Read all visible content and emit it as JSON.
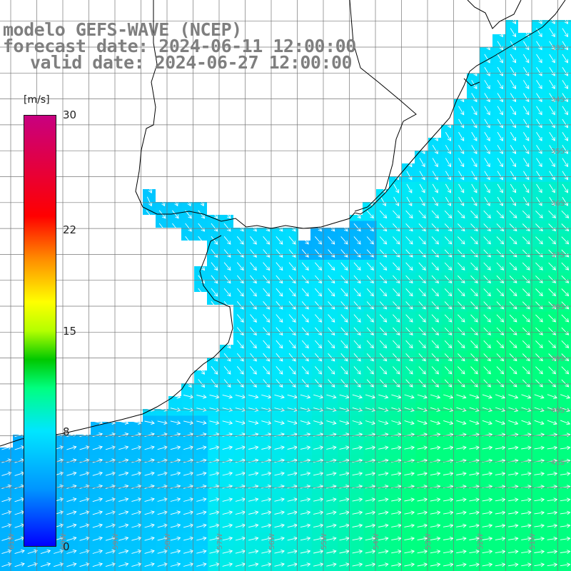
{
  "title": {
    "line1": "modelo GEFS-WAVE (NCEP)",
    "line2": "forecast date: 2024-06-11 12:00:00",
    "line3": "valid date: 2024-06-27 12:00:00"
  },
  "colorbar": {
    "unit": "[m/s]",
    "ticks": [
      "30",
      "22",
      "15",
      "8",
      "0"
    ],
    "tick_values": [
      30,
      22,
      15,
      8,
      0
    ],
    "min": 0,
    "max": 30,
    "stops": [
      {
        "v": 0,
        "color": "#0000ff"
      },
      {
        "v": 4,
        "color": "#0096ff"
      },
      {
        "v": 8,
        "color": "#00e6ff"
      },
      {
        "v": 11,
        "color": "#00ff80"
      },
      {
        "v": 13,
        "color": "#00c800"
      },
      {
        "v": 15,
        "color": "#b4ff00"
      },
      {
        "v": 17,
        "color": "#ffff00"
      },
      {
        "v": 20,
        "color": "#ff8c00"
      },
      {
        "v": 23,
        "color": "#ff0000"
      },
      {
        "v": 30,
        "color": "#c80080"
      }
    ]
  },
  "axes": {
    "lat_labels": [
      "33S",
      "34S",
      "35S",
      "36S",
      "37S",
      "38S",
      "39S",
      "40S",
      "41S"
    ],
    "lat_values": [
      -33,
      -34,
      -35,
      -36,
      -37,
      -38,
      -39,
      -40,
      -41
    ],
    "lon_labels": [
      "61W",
      "60W",
      "59W",
      "58W",
      "57W",
      "56W",
      "55W",
      "54W",
      "53W",
      "52W",
      "51W"
    ],
    "lon_values": [
      -61,
      -60,
      -59,
      -58,
      -57,
      -56,
      -55,
      -54,
      -53,
      -52,
      -51
    ]
  },
  "field": {
    "quantity": "wind speed",
    "units": "m/s",
    "wind_direction_north": "from north-west, turning to south-east near the coast",
    "wind_direction_south": "from south-west"
  }
}
